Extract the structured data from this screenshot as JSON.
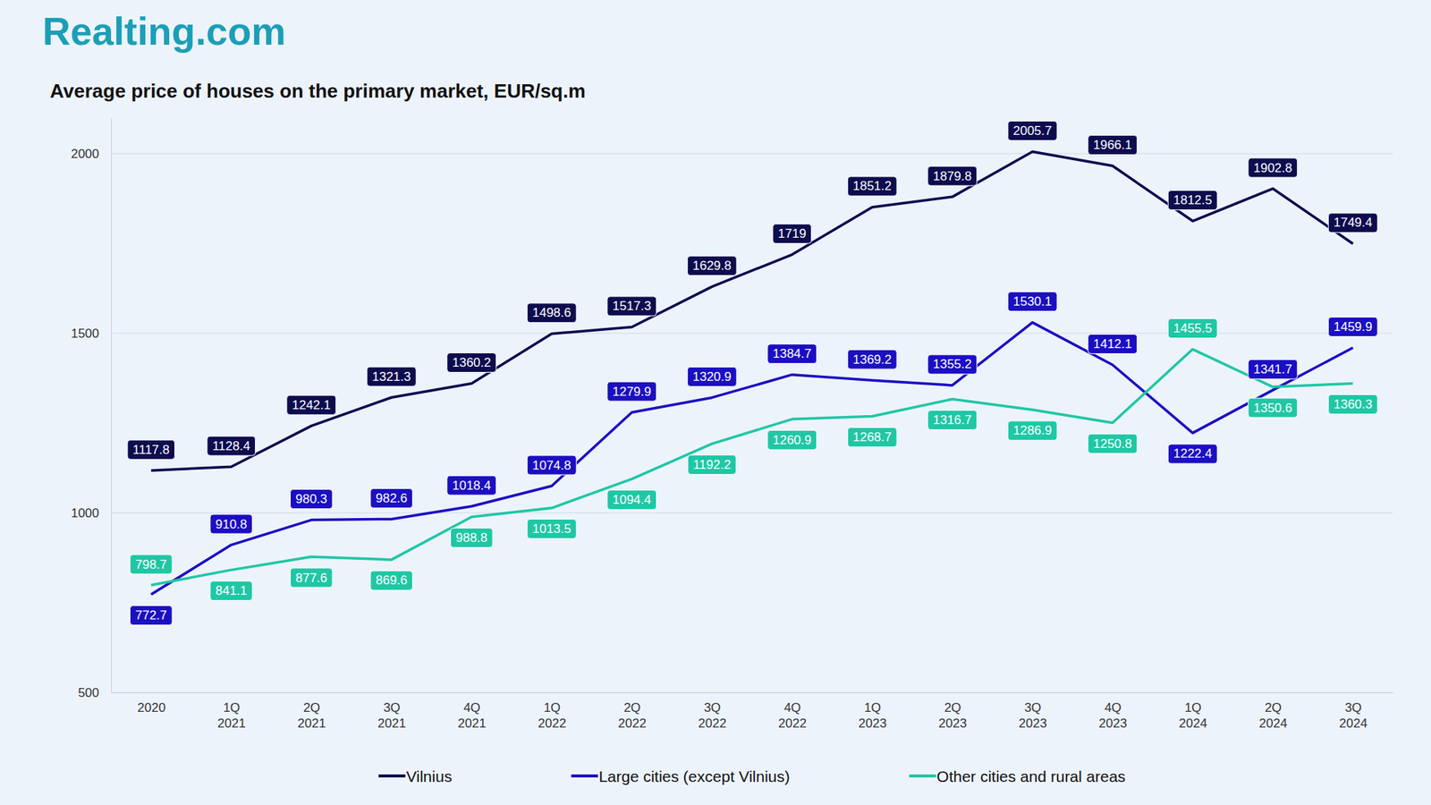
{
  "chart_data": {
    "type": "line",
    "logo_text": "Realting.com",
    "title": "Average price of houses on the primary market, EUR/sq.m",
    "categories": [
      "2020",
      "1Q 2021",
      "2Q 2021",
      "3Q 2021",
      "4Q 2021",
      "1Q 2022",
      "2Q 2022",
      "3Q 2022",
      "4Q 2022",
      "1Q 2023",
      "2Q 2023",
      "3Q 2023",
      "4Q 2023",
      "1Q 2024",
      "2Q 2024",
      "3Q 2024"
    ],
    "series": [
      {
        "name": "Vilnius",
        "color": "#0d0c4e",
        "values": [
          1117.8,
          1128.4,
          1242.1,
          1321.3,
          1360.2,
          1498.6,
          1517.3,
          1629.8,
          1719,
          1851.2,
          1879.8,
          2005.7,
          1966.1,
          1812.5,
          1902.8,
          1749.4
        ]
      },
      {
        "name": "Large cities (except Vilnius)",
        "color": "#1b0fc2",
        "values": [
          772.7,
          910.8,
          980.3,
          982.6,
          1018.4,
          1074.8,
          1279.9,
          1320.9,
          1384.7,
          1369.2,
          1355.2,
          1530.1,
          1412.1,
          1222.4,
          1341.7,
          1459.9
        ]
      },
      {
        "name": "Other cities and rural areas",
        "color": "#1fc7a5",
        "values": [
          798.7,
          841.1,
          877.6,
          869.6,
          988.8,
          1013.5,
          1094.4,
          1192.2,
          1260.9,
          1268.7,
          1316.7,
          1286.9,
          1250.8,
          1455.5,
          1350.6,
          1360.3
        ]
      }
    ],
    "ylim": [
      500,
      2100
    ],
    "yticks": [
      500,
      1000,
      1500,
      2000
    ],
    "grid": true,
    "legend": "bottom",
    "data_labels": true
  }
}
